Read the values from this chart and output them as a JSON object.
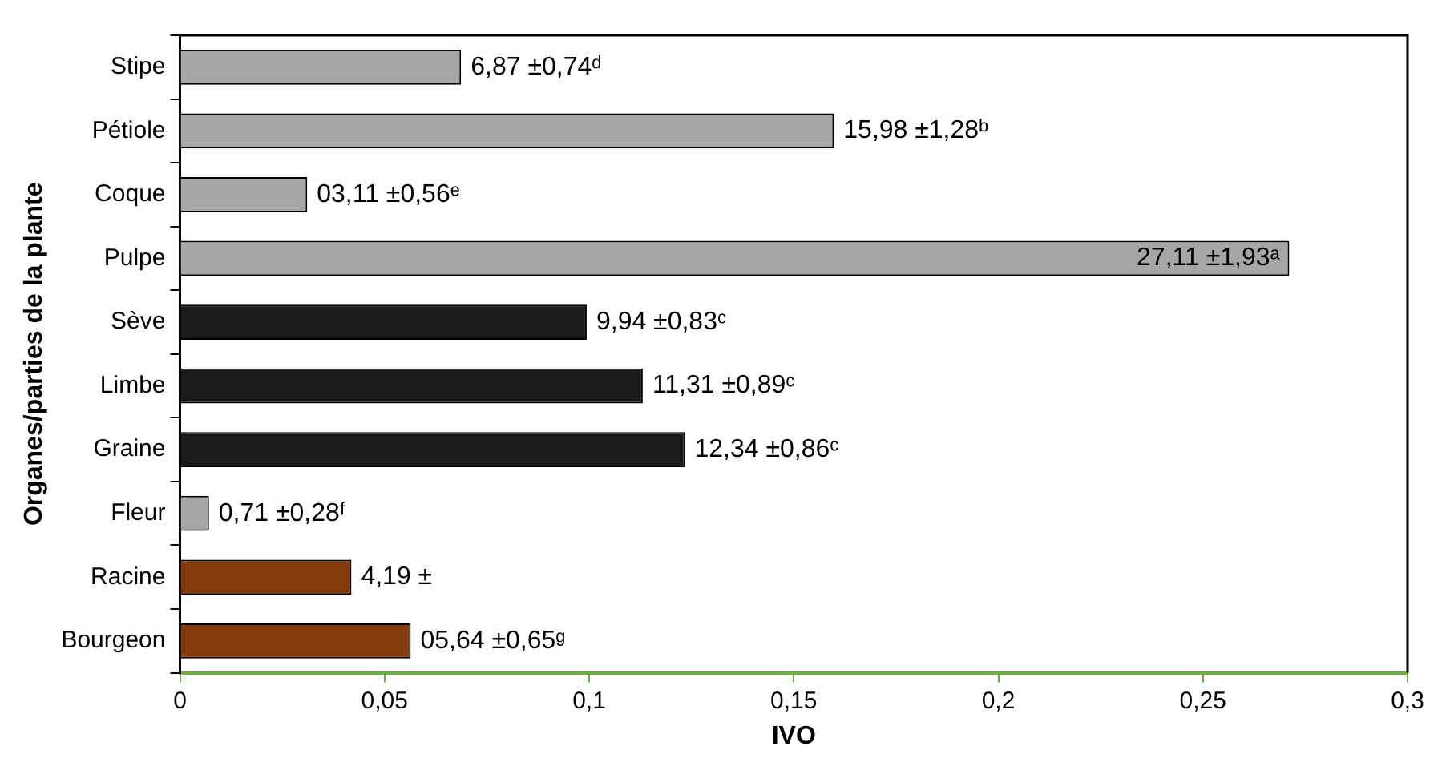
{
  "chart_data": {
    "type": "bar",
    "orientation": "horizontal",
    "xlabel": "IVO",
    "ylabel": "Organes/parties de la plante",
    "categories": [
      "Stipe",
      "Pétiole",
      "Coque",
      "Pulpe",
      "Sève",
      "Limbe",
      "Graine",
      "Fleur",
      "Racine",
      "Bourgeon"
    ],
    "values": [
      0.0687,
      0.1598,
      0.0311,
      0.2711,
      0.0994,
      0.1131,
      0.1234,
      0.0071,
      0.0419,
      0.0564
    ],
    "colors": [
      "#a6a6a6",
      "#a6a6a6",
      "#a6a6a6",
      "#a6a6a6",
      "#1a1a1a",
      "#1a1a1a",
      "#1a1a1a",
      "#a6a6a6",
      "#843c0c",
      "#843c0c"
    ],
    "annotations": [
      {
        "text": "6,87 ±0,74ᵈ",
        "x": 0.0687,
        "y": "Stipe"
      },
      {
        "text": "15,98 ±1,28ᵇ",
        "x": 0.1598,
        "y": "Pétiole"
      },
      {
        "text": "03,11 ±0,56ᵉ",
        "x": 0.0311,
        "y": "Coque"
      },
      {
        "text": "27,11 ±1,93ᵃ",
        "x": 0.2711,
        "y": "Pulpe"
      },
      {
        "text": "9,94 ±0,83ᶜ",
        "x": 0.0994,
        "y": "Sève"
      },
      {
        "text": "11,31 ±0,89ᶜ",
        "x": 0.1131,
        "y": "Limbe"
      },
      {
        "text": "12,34 ±0,86ᶜ",
        "x": 0.1234,
        "y": "Graine"
      },
      {
        "text": "0,71 ±0,28ᶠ",
        "x": 0.0071,
        "y": "Fleur"
      },
      {
        "text": "4,19 ±",
        "x": 0.0419,
        "y": "Racine"
      },
      {
        "text": "05,64 ±0,65ᵍ",
        "x": 0.0564,
        "y": "Bourgeon"
      }
    ],
    "xlim": [
      0,
      0.3
    ],
    "xticks": [
      0,
      {
        "value": 0.05,
        "label": "0,05"
      },
      {
        "value": 0.1,
        "label": "0,1"
      },
      {
        "value": 0.15,
        "label": "0,15"
      },
      {
        "value": 0.2,
        "label": "0,2"
      },
      {
        "value": 0.25,
        "label": "0,25"
      },
      {
        "value": 0.3,
        "label": "0,3"
      }
    ]
  }
}
